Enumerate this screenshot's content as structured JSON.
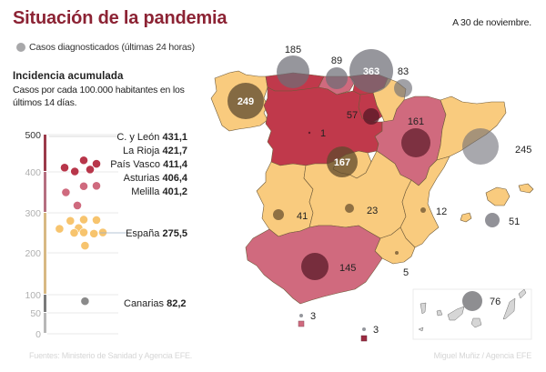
{
  "header": {
    "title": "Situación de la pandemia",
    "date": "A 30 de noviembre."
  },
  "legend": {
    "label": "Casos diagnosticados (últimas 24 horas)",
    "icon": "gray-circle-icon"
  },
  "incidence": {
    "title": "Incidencia acumulada",
    "subtitle": "Casos por cada 100.000 habitantes en los últimos 14 días."
  },
  "colors": {
    "title": "#8c2334",
    "very_high": "#c0394b",
    "high": "#d06a7e",
    "medium": "#f9cb7e",
    "low": "#8a8a8a",
    "bubble_gray": "#8a8c92",
    "bubble_on_high": "#6b2a3c",
    "bubble_on_medium": "#7d6440"
  },
  "chart_data": {
    "type": "scatter",
    "title": "Incidencia acumulada",
    "ylabel": "Casos por cada 100.000 habitantes en los últimos 14 días.",
    "ylim": [
      0,
      500
    ],
    "yticks": [
      0,
      50,
      100,
      200,
      300,
      400,
      500
    ],
    "ytick_labels": [
      "0",
      "50",
      "100",
      "200",
      "300",
      "400",
      "500"
    ],
    "bands": [
      {
        "from": 0,
        "to": 50,
        "color": "#b8b8b8"
      },
      {
        "from": 50,
        "to": 100,
        "color": "#7a7a7a"
      },
      {
        "from": 100,
        "to": 300,
        "color": "#d8b983"
      },
      {
        "from": 300,
        "to": 400,
        "color": "#b56f80"
      },
      {
        "from": 400,
        "to": 500,
        "color": "#9b3a4a"
      }
    ],
    "points": [
      {
        "value": 431.1,
        "col": 3,
        "color": "#b8364a"
      },
      {
        "value": 421.7,
        "col": 5,
        "color": "#b8364a"
      },
      {
        "value": 411.4,
        "col": 0,
        "color": "#b8364a"
      },
      {
        "value": 406.4,
        "col": 4,
        "color": "#b8364a"
      },
      {
        "value": 401.2,
        "col": 1.6,
        "color": "#b8364a"
      },
      {
        "value": 365,
        "col": 3,
        "color": "#cf6a7e"
      },
      {
        "value": 366,
        "col": 5,
        "color": "#cf6a7e"
      },
      {
        "value": 350,
        "col": 0.2,
        "color": "#cf6a7e"
      },
      {
        "value": 318,
        "col": 2,
        "color": "#cf6a7e"
      },
      {
        "value": 283,
        "col": 3,
        "color": "#f7c46e"
      },
      {
        "value": 282,
        "col": 5,
        "color": "#f7c46e"
      },
      {
        "value": 280,
        "col": 0.9,
        "color": "#f7c46e"
      },
      {
        "value": 262,
        "col": 2.2,
        "color": "#f7c46e"
      },
      {
        "value": 260,
        "col": -0.8,
        "color": "#f7c46e"
      },
      {
        "value": 250,
        "col": 1.5,
        "color": "#f7c46e"
      },
      {
        "value": 251,
        "col": 3,
        "color": "#f7c46e"
      },
      {
        "value": 248,
        "col": 4.6,
        "color": "#f7c46e"
      },
      {
        "value": 251,
        "col": 6,
        "color": "#f7c46e"
      },
      {
        "value": 218,
        "col": 3.2,
        "color": "#f7c46e"
      },
      {
        "value": 82.2,
        "col": 3.2,
        "color": "#8a8a8a"
      }
    ],
    "annotations": [
      {
        "name": "C. y León",
        "value": "431,1"
      },
      {
        "name": "La Rioja",
        "value": "421,7"
      },
      {
        "name": "País Vasco",
        "value": "411,4"
      },
      {
        "name": "Asturias",
        "value": "406,4"
      },
      {
        "name": "Melilla",
        "value": "401,2"
      },
      {
        "name": "España",
        "value": "275,5"
      },
      {
        "name": "Canarias",
        "value": "82,2"
      }
    ]
  },
  "map": {
    "bubbles": [
      {
        "region": "Galicia",
        "cases": "249",
        "label_inside": true
      },
      {
        "region": "Asturias",
        "cases": "185"
      },
      {
        "region": "Cantabria",
        "cases": "89"
      },
      {
        "region": "País Vasco",
        "cases": "363",
        "label_inside": true
      },
      {
        "region": "Navarra",
        "cases": "83"
      },
      {
        "region": "La Rioja",
        "cases": "57"
      },
      {
        "region": "Castilla y León",
        "cases": "1"
      },
      {
        "region": "Madrid",
        "cases": "167",
        "label_inside": true
      },
      {
        "region": "Aragón",
        "cases": "161"
      },
      {
        "region": "Cataluña",
        "cases": "245"
      },
      {
        "region": "Extremadura",
        "cases": "41"
      },
      {
        "region": "Castilla-La Mancha",
        "cases": "23"
      },
      {
        "region": "Comunidad Valenciana",
        "cases": "12"
      },
      {
        "region": "Baleares",
        "cases": "51"
      },
      {
        "region": "Murcia",
        "cases": "5"
      },
      {
        "region": "Andalucía",
        "cases": "145"
      },
      {
        "region": "Ceuta",
        "cases": "3"
      },
      {
        "region": "Melilla",
        "cases": "3"
      },
      {
        "region": "Canarias",
        "cases": "76"
      }
    ]
  },
  "footer": {
    "source": "Fuentes: Ministerio de Sanidad y Agencia EFE.",
    "credit": "Miguel Muñiz / Agencia EFE"
  }
}
